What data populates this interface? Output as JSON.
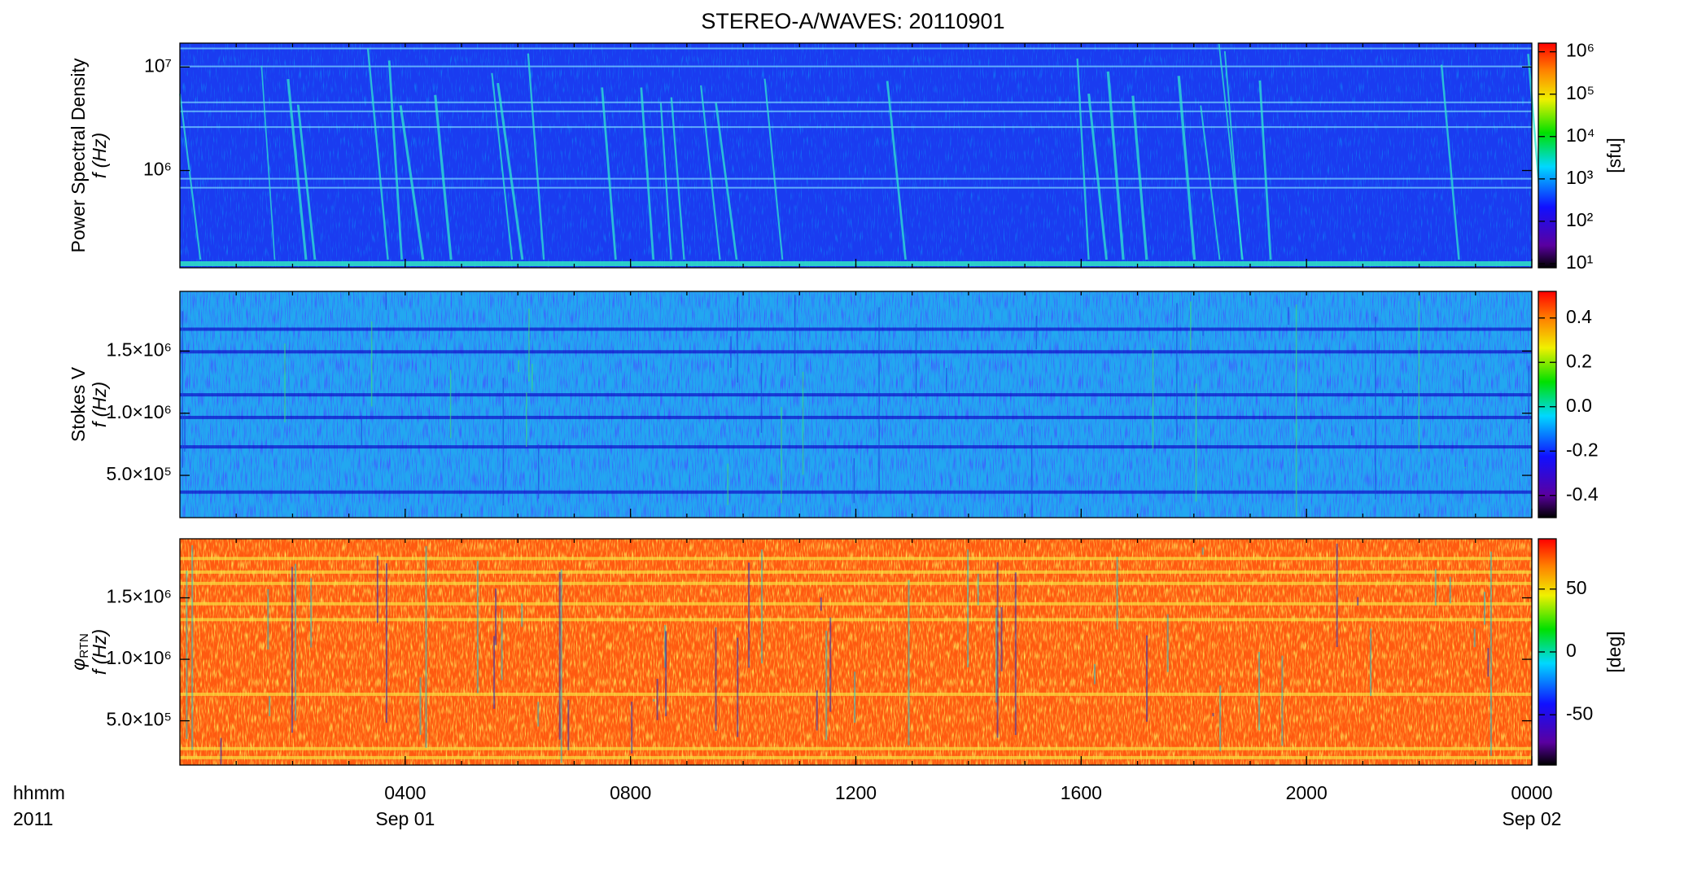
{
  "title": "STEREO-A/WAVES: 20110901",
  "x_axis": {
    "xlim": [
      0,
      24
    ],
    "xticks": [
      {
        "value": 4,
        "label": "0400"
      },
      {
        "value": 8,
        "label": "0800"
      },
      {
        "value": 12,
        "label": "1200"
      },
      {
        "value": 16,
        "label": "1600"
      },
      {
        "value": 20,
        "label": "2000"
      },
      {
        "value": 24,
        "label": "0000"
      }
    ],
    "xtick_sublabels": [
      {
        "value": 4,
        "label": "Sep 01"
      },
      {
        "value": 24,
        "label": "Sep 02"
      }
    ],
    "labels": [
      "hhmm",
      "2011"
    ]
  },
  "chart_data": [
    {
      "type": "heatmap",
      "ylabel": [
        "Power Spectral Density",
        "f (Hz)"
      ],
      "yscale": "log",
      "ylim": [
        115000,
        17000000
      ],
      "yticks": [
        {
          "value": 1000000,
          "label": "10⁶"
        },
        {
          "value": 10000000,
          "label": "10⁷"
        }
      ],
      "colorbar": {
        "scale": "log",
        "lim": [
          8,
          1600000
        ],
        "label": "[sfu]",
        "ticks": [
          {
            "value": 10,
            "label": "10¹"
          },
          {
            "value": 100,
            "label": "10²"
          },
          {
            "value": 1000,
            "label": "10³"
          },
          {
            "value": 10000,
            "label": "10⁴"
          },
          {
            "value": 100000,
            "label": "10⁵"
          },
          {
            "value": 1000000,
            "label": "10⁶"
          }
        ]
      }
    },
    {
      "type": "heatmap",
      "ylabel": [
        "Stokes V",
        "f (Hz)"
      ],
      "yscale": "linear",
      "ylim": [
        160000,
        1980000
      ],
      "yticks": [
        {
          "value": 500000,
          "label": "5.0×10⁵"
        },
        {
          "value": 1000000,
          "label": "1.0×10⁶"
        },
        {
          "value": 1500000,
          "label": "1.5×10⁶"
        }
      ],
      "colorbar": {
        "scale": "linear",
        "lim": [
          -0.5,
          0.52
        ],
        "ticks": [
          -0.4,
          -0.2,
          {
            "value": 0,
            "label": "0.0"
          },
          0.2,
          0.4
        ]
      }
    },
    {
      "type": "heatmap",
      "ylabel": [
        "φ",
        "f (Hz)"
      ],
      "ylabel_sub": "RTN",
      "yscale": "linear",
      "ylim": [
        140000,
        1980000
      ],
      "yticks": [
        {
          "value": 500000,
          "label": "5.0×10⁵"
        },
        {
          "value": 1000000,
          "label": "1.0×10⁶"
        },
        {
          "value": 1500000,
          "label": "1.5×10⁶"
        }
      ],
      "colorbar": {
        "scale": "linear",
        "lim": [
          -90,
          90
        ],
        "label": "[deg]",
        "ticks": [
          -50,
          0,
          50
        ]
      }
    }
  ]
}
